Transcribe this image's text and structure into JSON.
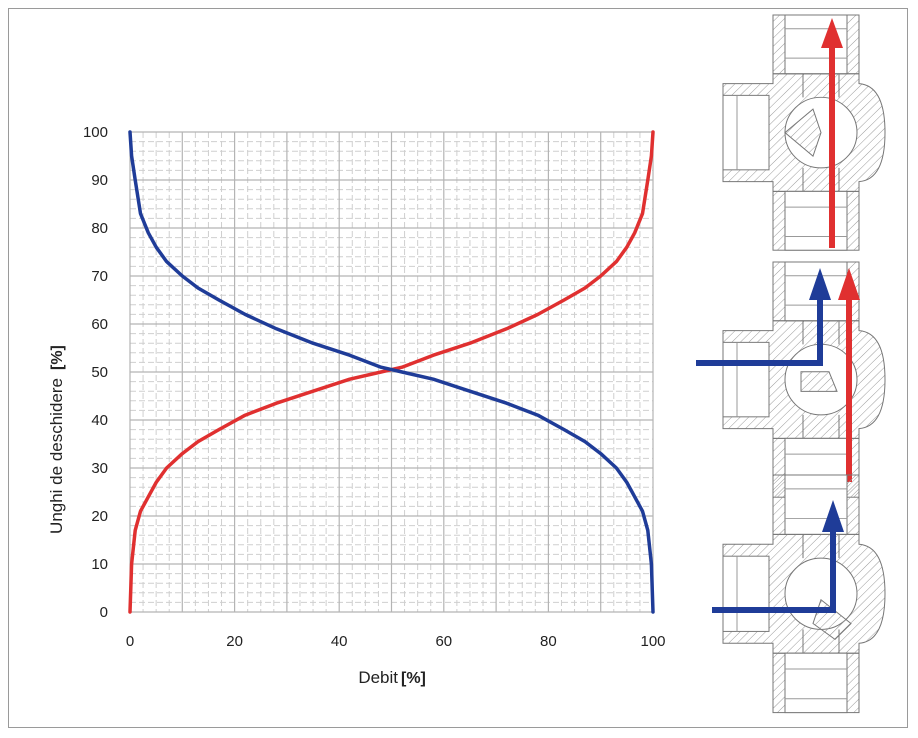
{
  "chart_data": {
    "type": "line",
    "title": "",
    "xlabel": "Debit",
    "xunit": "[%]",
    "ylabel": "Unghi de deschidere",
    "yunit": "[%]",
    "xlim": [
      0,
      100
    ],
    "ylim": [
      0,
      100
    ],
    "xticks": [
      0,
      20,
      40,
      60,
      80,
      100
    ],
    "yticks": [
      0,
      10,
      20,
      30,
      40,
      50,
      60,
      70,
      80,
      90,
      100
    ],
    "grid": true,
    "series": [
      {
        "color": "#e03030",
        "x": [
          0,
          0.3,
          1,
          2,
          3.5,
          5,
          7,
          10,
          13,
          17,
          22,
          28,
          35,
          42,
          48,
          50,
          52,
          58,
          65,
          72,
          78,
          83,
          87,
          90,
          93,
          95,
          96.5,
          98,
          99,
          99.7,
          100
        ],
        "y": [
          0,
          10,
          17,
          21,
          24,
          27,
          30,
          33,
          35.5,
          38,
          41,
          43.5,
          46,
          48.5,
          50,
          50.5,
          51,
          53.5,
          56,
          59,
          62,
          65,
          67.5,
          70,
          73,
          76,
          79,
          83,
          90,
          95,
          100
        ]
      },
      {
        "color": "#1f3c98",
        "x": [
          0,
          0.3,
          1,
          2,
          3.5,
          5,
          7,
          10,
          13,
          17,
          22,
          28,
          35,
          42,
          48,
          50,
          52,
          58,
          65,
          72,
          78,
          83,
          87,
          90,
          93,
          95,
          96.5,
          98,
          99,
          99.7,
          100
        ],
        "y": [
          100,
          95,
          90,
          83,
          79,
          76,
          73,
          70,
          67.5,
          65,
          62,
          59,
          56,
          53.5,
          51,
          50.5,
          50,
          48.5,
          46,
          43.5,
          41,
          38,
          35.5,
          33,
          30,
          27,
          24,
          21,
          17,
          10,
          0
        ]
      }
    ]
  },
  "colors": {
    "red": "#e03030",
    "blue": "#1f3c98",
    "grid_major": "#b4b4b4",
    "grid_minor": "#cfcfcf"
  },
  "valve_diagrams": [
    {
      "name": "valve-closed-side",
      "icon": "three-way-valve-section-icon",
      "arrows": [
        "red-straight"
      ]
    },
    {
      "name": "valve-mixing",
      "icon": "three-way-valve-section-icon",
      "arrows": [
        "blue-elbow",
        "red-straight"
      ]
    },
    {
      "name": "valve-closed-through",
      "icon": "three-way-valve-section-icon",
      "arrows": [
        "blue-elbow"
      ]
    }
  ]
}
